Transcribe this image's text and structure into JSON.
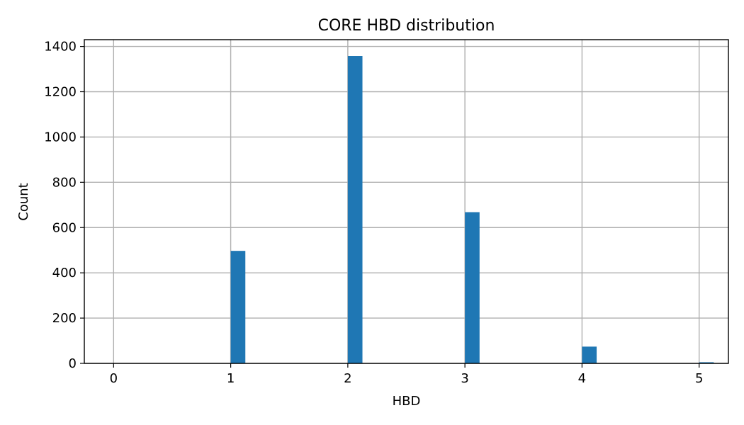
{
  "chart_data": {
    "type": "bar",
    "title": "CORE HBD distribution",
    "xlabel": "HBD",
    "ylabel": "Count",
    "x": [
      0,
      1,
      2,
      3,
      4,
      5
    ],
    "values": [
      0,
      497,
      1358,
      668,
      74,
      5
    ],
    "bin_width": 0.125,
    "xlim": [
      -0.25,
      5.25
    ],
    "ylim": [
      0,
      1430
    ],
    "x_ticks": [
      0,
      1,
      2,
      3,
      4,
      5
    ],
    "y_ticks": [
      0,
      200,
      400,
      600,
      800,
      1000,
      1200,
      1400
    ],
    "grid": true,
    "bar_color": "#1f77b4",
    "grid_color": "#b0b0b0"
  }
}
